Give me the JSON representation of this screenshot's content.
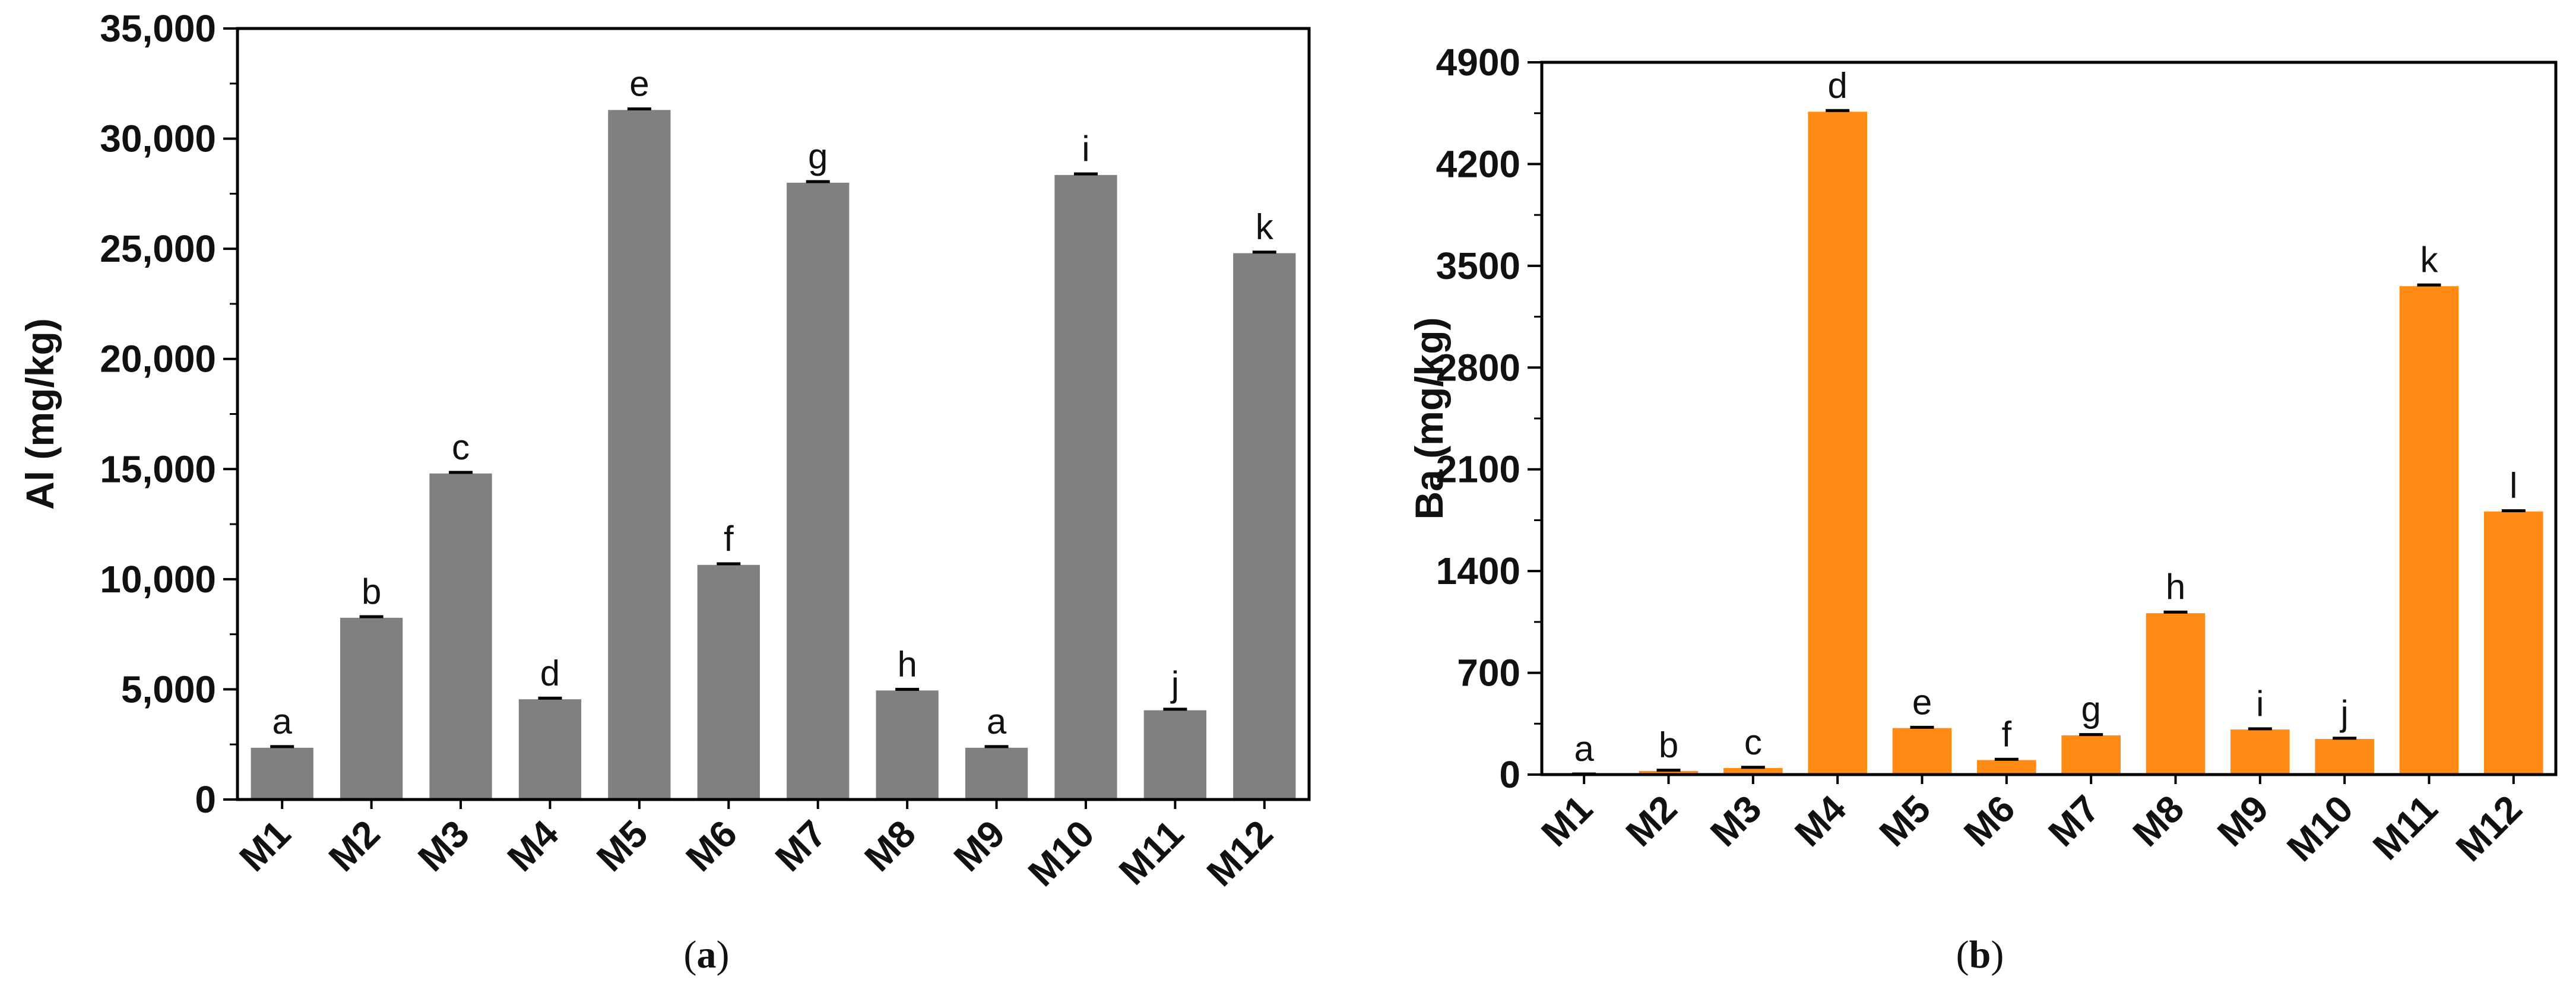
{
  "chart_data": [
    {
      "id": "a",
      "type": "bar",
      "caption": "a",
      "ylabel": "Al (mg/kg)",
      "xlabel": "",
      "ylim": [
        0,
        35000
      ],
      "yticks": [
        0,
        5000,
        10000,
        15000,
        20000,
        25000,
        30000,
        35000
      ],
      "ytick_labels": [
        "0",
        "5,000",
        "10,000",
        "15,000",
        "20,000",
        "25,000",
        "30,000",
        "35,000"
      ],
      "categories": [
        "M1",
        "M2",
        "M3",
        "M4",
        "M5",
        "M6",
        "M7",
        "M8",
        "M9",
        "M10",
        "M11",
        "M12"
      ],
      "values": [
        2350,
        8250,
        14800,
        4550,
        31300,
        10650,
        28000,
        4950,
        2350,
        28350,
        4050,
        24800
      ],
      "errors": [
        50,
        50,
        50,
        50,
        50,
        50,
        50,
        50,
        50,
        50,
        50,
        50
      ],
      "letters": [
        "a",
        "b",
        "c",
        "d",
        "e",
        "f",
        "g",
        "h",
        "a",
        "i",
        "j",
        "k"
      ],
      "letter_colors": [
        "#e0186c",
        "#111111",
        "#111111",
        "#111111",
        "#111111",
        "#111111",
        "#111111",
        "#111111",
        "#e0186c",
        "#111111",
        "#111111",
        "#111111"
      ],
      "bar_color": "#808080",
      "grid": false
    },
    {
      "id": "b",
      "type": "bar",
      "caption": "b",
      "ylabel": "Ba (mg/kg)",
      "xlabel": "",
      "ylim": [
        0,
        4900
      ],
      "yticks": [
        0,
        700,
        1400,
        2100,
        2800,
        3500,
        4200,
        4900
      ],
      "ytick_labels": [
        "0",
        "700",
        "1400",
        "2100",
        "2800",
        "3500",
        "4200",
        "4900"
      ],
      "categories": [
        "M1",
        "M2",
        "M3",
        "M4",
        "M5",
        "M6",
        "M7",
        "M8",
        "M9",
        "M10",
        "M11",
        "M12"
      ],
      "values": [
        2,
        25,
        45,
        4560,
        320,
        100,
        270,
        1110,
        310,
        245,
        3360,
        1810
      ],
      "errors": [
        2,
        5,
        5,
        8,
        5,
        5,
        5,
        8,
        5,
        5,
        8,
        5
      ],
      "letters": [
        "a",
        "b",
        "c",
        "d",
        "e",
        "f",
        "g",
        "h",
        "i",
        "j",
        "k",
        "l"
      ],
      "letter_colors": [
        "#111111",
        "#111111",
        "#111111",
        "#111111",
        "#111111",
        "#111111",
        "#111111",
        "#111111",
        "#111111",
        "#111111",
        "#111111",
        "#111111"
      ],
      "bar_color": "#ff8a14",
      "grid": false
    }
  ]
}
